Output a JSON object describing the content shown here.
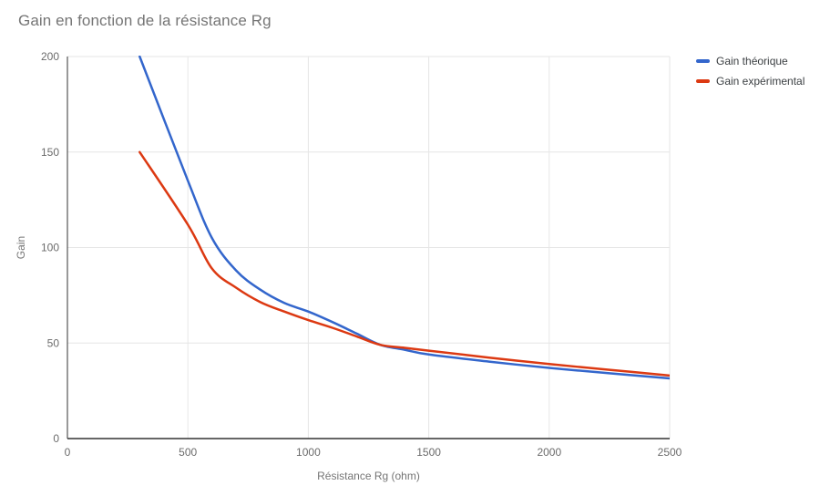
{
  "chart_data": {
    "type": "line",
    "smooth": true,
    "grid": true,
    "legend_position": "right",
    "title": "Gain en fonction de la résistance Rg",
    "xlabel": "Résistance Rg (ohm)",
    "ylabel": "Gain",
    "xlim": [
      0,
      2500
    ],
    "ylim": [
      0,
      200
    ],
    "xticks": [
      0,
      500,
      1000,
      1500,
      2000,
      2500
    ],
    "yticks": [
      0,
      50,
      100,
      150,
      200
    ],
    "x": [
      300,
      500,
      600,
      700,
      800,
      900,
      1000,
      1100,
      1200,
      1300,
      1400,
      1500,
      1750,
      2000,
      2250,
      2500
    ],
    "series": [
      {
        "name": "Gain théorique",
        "color": "#3366CC",
        "values": [
          200,
          135,
          105,
          88,
          78,
          71,
          66.5,
          61,
          55,
          49,
          46.5,
          44,
          40.3,
          37,
          34.2,
          31.5
        ]
      },
      {
        "name": "Gain expérimental",
        "color": "#DC3912",
        "values": [
          150,
          112,
          89,
          79,
          71.5,
          66.5,
          62,
          58,
          53.5,
          49,
          47.5,
          46,
          42.4,
          39,
          36,
          33
        ]
      }
    ],
    "colors": {
      "title_text": "#757575",
      "tick_text": "#6b6b6b",
      "axis_line": "#333333",
      "gridline": "#e6e6e6",
      "legend_text": "#3c4043",
      "background": "#ffffff"
    }
  }
}
